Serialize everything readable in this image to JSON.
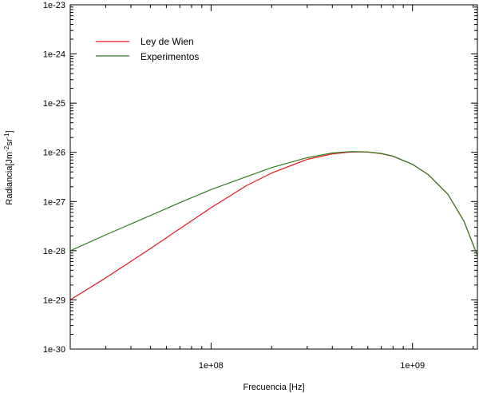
{
  "chart_data": {
    "type": "line",
    "title": "",
    "xlabel": "Frecuencia [Hz]",
    "ylabel": {
      "base": "Radiancia[Jm",
      "sup1": "-2",
      "mid": "sr",
      "sup2": "-1",
      "end": "]"
    },
    "xscale": "log",
    "yscale": "log",
    "xlim": [
      20000000,
      2100000000
    ],
    "ylim": [
      1e-30,
      1e-23
    ],
    "x_ticks": [
      {
        "value": 100000000,
        "label": "1e+08"
      },
      {
        "value": 1000000000,
        "label": "1e+09"
      }
    ],
    "y_ticks": [
      {
        "value": 1e-23,
        "label": "1e-23"
      },
      {
        "value": 1e-24,
        "label": "1e-24"
      },
      {
        "value": 1e-25,
        "label": "1e-25"
      },
      {
        "value": 1e-26,
        "label": "1e-26"
      },
      {
        "value": 1e-27,
        "label": "1e-27"
      },
      {
        "value": 1e-28,
        "label": "1e-28"
      },
      {
        "value": 1e-29,
        "label": "1e-29"
      },
      {
        "value": 1e-30,
        "label": "1e-30"
      }
    ],
    "grid": false,
    "legend_position": "top-left",
    "series": [
      {
        "name": "Ley de Wien",
        "color": "#e8141e",
        "x": [
          20000000,
          30000000,
          50000000,
          70000000,
          100000000,
          150000000,
          200000000,
          300000000,
          400000000,
          500000000,
          600000000,
          700000000,
          800000000,
          1000000000,
          1200000000,
          1500000000,
          1800000000,
          2100000000
        ],
        "y": [
          1e-29,
          2.8e-29,
          1.1e-28,
          2.8e-28,
          7.5e-28,
          2.1e-27,
          3.8e-27,
          7.2e-27,
          9.3e-27,
          1.02e-26,
          1.01e-26,
          9.4e-27,
          8.3e-27,
          5.7e-27,
          3.5e-27,
          1.4e-27,
          4e-28,
          8e-29
        ]
      },
      {
        "name": "Experimentos",
        "color": "#2e7d1e",
        "x": [
          20000000,
          30000000,
          50000000,
          70000000,
          100000000,
          150000000,
          200000000,
          300000000,
          400000000,
          500000000,
          600000000,
          700000000,
          800000000,
          1000000000,
          1200000000,
          1500000000,
          1800000000,
          2100000000
        ],
        "y": [
          1e-28,
          2.1e-28,
          5.2e-28,
          9.5e-28,
          1.75e-27,
          3.2e-27,
          4.9e-27,
          7.8e-27,
          9.7e-27,
          1.04e-26,
          1.02e-26,
          9.5e-27,
          8.4e-27,
          5.7e-27,
          3.5e-27,
          1.4e-27,
          4e-28,
          8e-29
        ]
      }
    ]
  }
}
